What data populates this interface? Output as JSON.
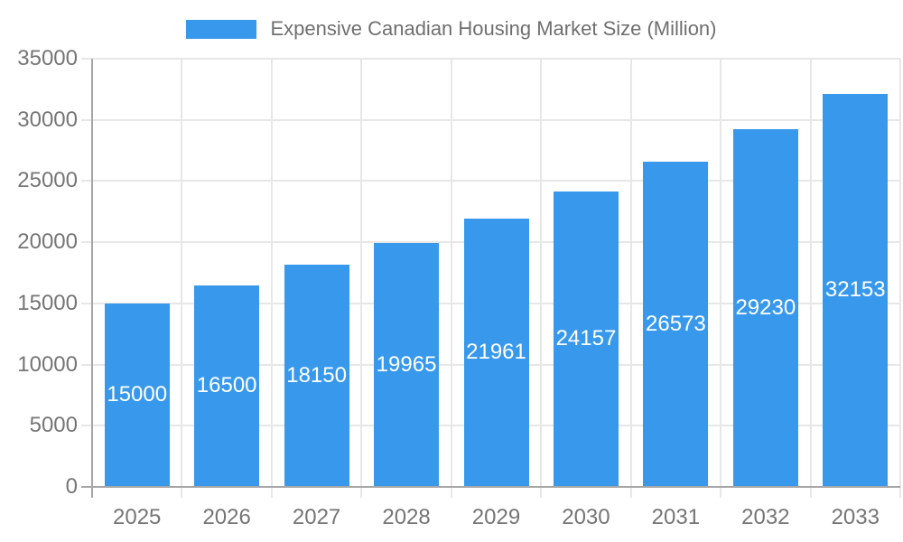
{
  "chart_data": {
    "type": "bar",
    "title": "",
    "xlabel": "",
    "ylabel": "",
    "legend": {
      "label": "Expensive Canadian Housing Market Size (Million)",
      "position": "top"
    },
    "categories": [
      "2025",
      "2026",
      "2027",
      "2028",
      "2029",
      "2030",
      "2031",
      "2032",
      "2033"
    ],
    "values": [
      15000,
      16500,
      18150,
      19965,
      21961,
      24157,
      26573,
      29230,
      32153
    ],
    "value_labels": [
      "15000",
      "16500",
      "18150",
      "19965",
      "21961",
      "24157",
      "26573",
      "29230",
      "32153"
    ],
    "ylim": [
      0,
      35000
    ],
    "yticks": [
      0,
      5000,
      10000,
      15000,
      20000,
      25000,
      30000,
      35000
    ],
    "ytick_labels": [
      "0",
      "5000",
      "10000",
      "15000",
      "20000",
      "25000",
      "30000",
      "35000"
    ],
    "grid": true,
    "grid_vertical": true,
    "legend_position": "top",
    "colors": {
      "bar": "#3899EC",
      "grid": "#e7e7e7",
      "axis": "#a6a6a6",
      "tick_text": "#757575",
      "legend_text": "#6f6f6f",
      "value_label": "#ffffff",
      "background": "#ffffff"
    }
  }
}
